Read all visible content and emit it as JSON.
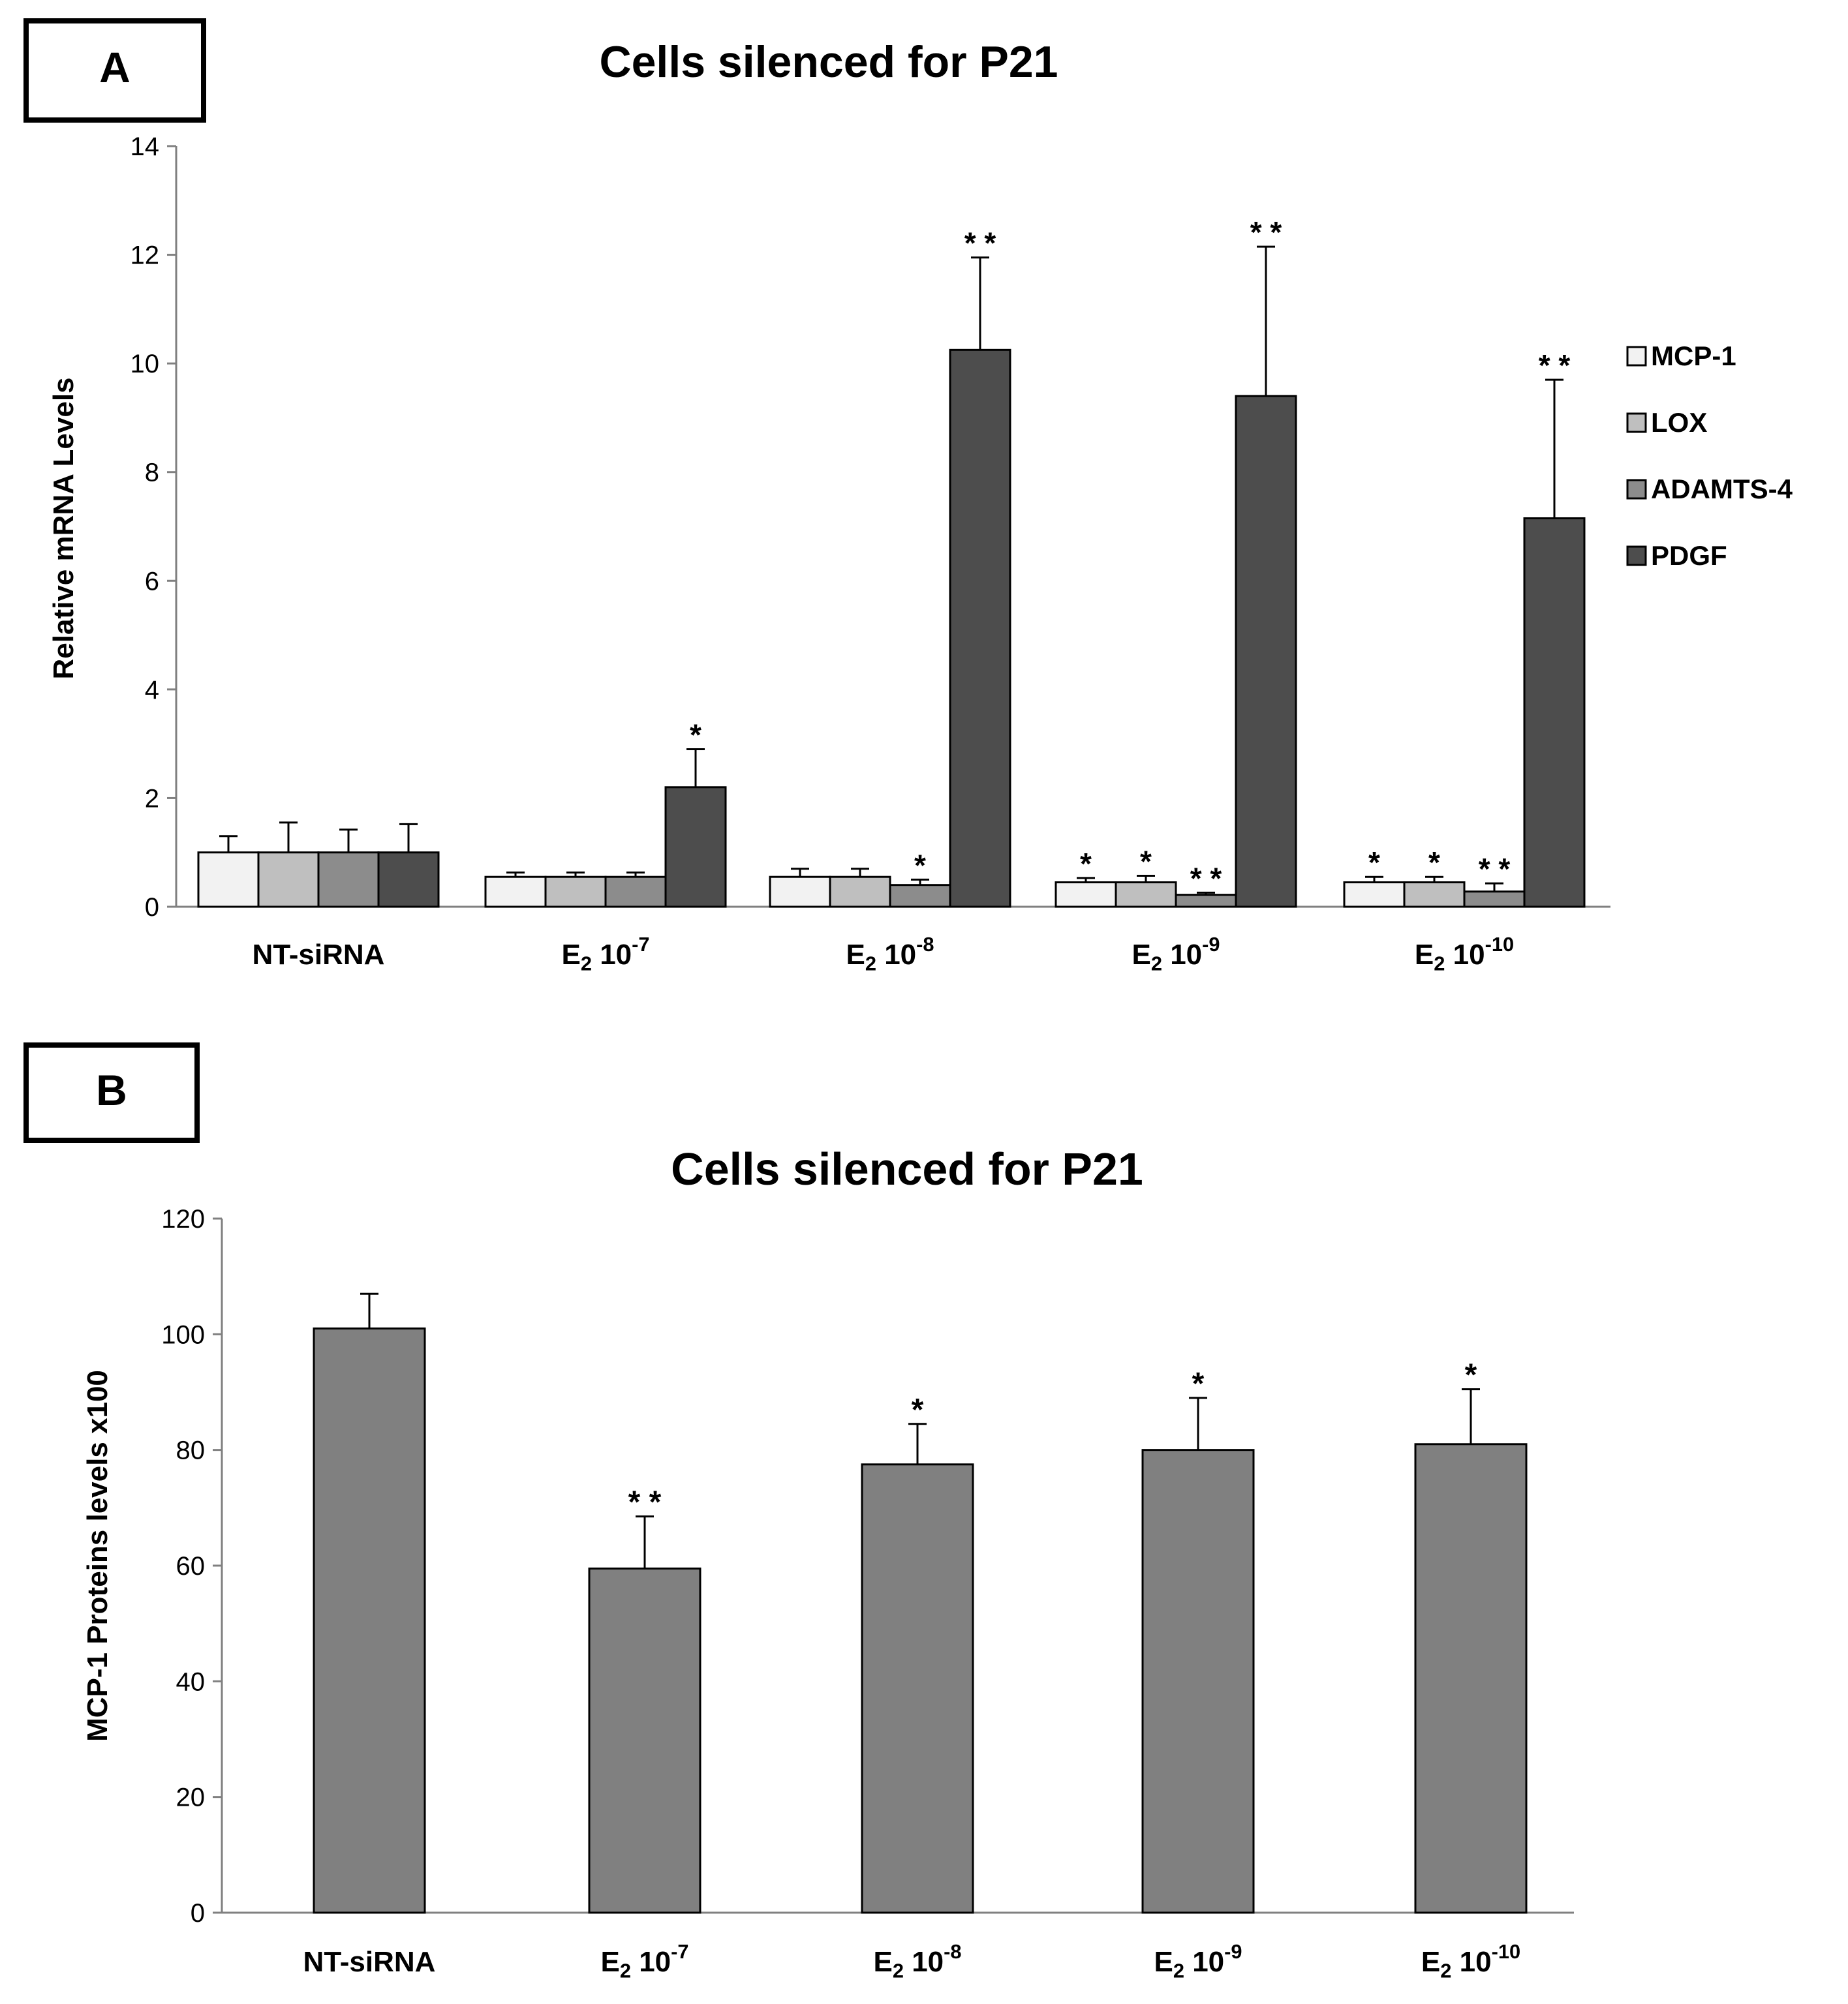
{
  "chart_data": [
    {
      "type": "bar",
      "panel_label": "A",
      "title": "Cells silenced for P21",
      "xlabel": "",
      "ylabel": "Relative mRNA Levels",
      "ylim": [
        0,
        14
      ],
      "yticks": [
        "0",
        "2",
        "4",
        "6",
        "8",
        "10",
        "12",
        "14"
      ],
      "grid": false,
      "legend_position": "right",
      "categories": [
        {
          "base": "NT-siRNA",
          "sup": ""
        },
        {
          "base": "E",
          "sub": "2",
          "rest": " 10",
          "sup": "-7"
        },
        {
          "base": "E",
          "sub": "2",
          "rest": " 10",
          "sup": "-8"
        },
        {
          "base": "E",
          "sub": "2",
          "rest": " 10",
          "sup": "-9"
        },
        {
          "base": "E",
          "sub": "2",
          "rest": " 10",
          "sup": "-10"
        }
      ],
      "series": [
        {
          "name": "MCP-1",
          "color": "#f2f2f2",
          "values": [
            1.0,
            0.55,
            0.55,
            0.45,
            0.45
          ],
          "errors": [
            0.3,
            0.08,
            0.15,
            0.08,
            0.1
          ],
          "marks": [
            "",
            "",
            "",
            "*",
            "*"
          ]
        },
        {
          "name": "LOX",
          "color": "#bfbfbf",
          "values": [
            1.0,
            0.55,
            0.55,
            0.45,
            0.45
          ],
          "errors": [
            0.55,
            0.08,
            0.15,
            0.12,
            0.1
          ],
          "marks": [
            "",
            "",
            "",
            "*",
            "*"
          ]
        },
        {
          "name": "ADAMTS-4",
          "color": "#8c8c8c",
          "values": [
            1.0,
            0.55,
            0.4,
            0.22,
            0.28
          ],
          "errors": [
            0.42,
            0.08,
            0.1,
            0.04,
            0.15
          ],
          "marks": [
            "",
            "",
            "*",
            "**",
            "**"
          ]
        },
        {
          "name": "PDGF",
          "color": "#4d4d4d",
          "values": [
            1.0,
            2.2,
            10.25,
            9.4,
            7.15
          ],
          "errors": [
            0.52,
            0.7,
            1.7,
            2.75,
            2.55
          ],
          "marks": [
            "",
            "*",
            "**",
            "**",
            "**"
          ]
        }
      ]
    },
    {
      "type": "bar",
      "panel_label": "B",
      "title": "Cells silenced for P21",
      "xlabel": "",
      "ylabel": "MCP-1 Proteins levels x100",
      "ylim": [
        0,
        120
      ],
      "yticks": [
        "0",
        "20",
        "40",
        "60",
        "80",
        "100",
        "120"
      ],
      "grid": false,
      "categories": [
        {
          "base": "NT-siRNA",
          "sup": ""
        },
        {
          "base": "E",
          "sub": "2",
          "rest": " 10",
          "sup": "-7"
        },
        {
          "base": "E",
          "sub": "2",
          "rest": " 10",
          "sup": "-8"
        },
        {
          "base": "E",
          "sub": "2",
          "rest": " 10",
          "sup": "-9"
        },
        {
          "base": "E",
          "sub": "2",
          "rest": " 10",
          "sup": "-10"
        }
      ],
      "series": [
        {
          "name": "MCP-1 protein",
          "color": "#808080",
          "values": [
            101,
            59.5,
            77.5,
            80,
            81
          ],
          "errors": [
            6,
            9,
            7,
            9,
            9.5
          ],
          "marks": [
            "",
            "**",
            "*",
            "*",
            "*"
          ]
        }
      ]
    }
  ]
}
